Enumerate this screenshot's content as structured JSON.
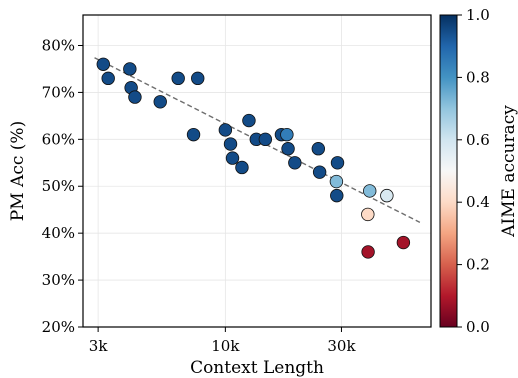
{
  "chart_data": {
    "type": "scatter",
    "xlabel": "Context Length",
    "ylabel": "PM Acc (%)",
    "x_scale": "log",
    "x_ticks": [
      {
        "value": 3000,
        "label": "3k"
      },
      {
        "value": 10000,
        "label": "10k"
      },
      {
        "value": 30000,
        "label": "30k"
      }
    ],
    "xlim": [
      2600,
      70000
    ],
    "y_ticks": [
      {
        "value": 20,
        "label": "20%"
      },
      {
        "value": 30,
        "label": "30%"
      },
      {
        "value": 40,
        "label": "40%"
      },
      {
        "value": 50,
        "label": "50%"
      },
      {
        "value": 60,
        "label": "60%"
      },
      {
        "value": 70,
        "label": "70%"
      },
      {
        "value": 80,
        "label": "80%"
      }
    ],
    "ylim": [
      20,
      86.5
    ],
    "grid": true,
    "points": [
      {
        "x": 3150,
        "y": 76,
        "aime": 0.95
      },
      {
        "x": 3300,
        "y": 73,
        "aime": 0.95
      },
      {
        "x": 4050,
        "y": 75,
        "aime": 0.95
      },
      {
        "x": 4100,
        "y": 71,
        "aime": 0.95
      },
      {
        "x": 4250,
        "y": 69,
        "aime": 0.95
      },
      {
        "x": 5400,
        "y": 68,
        "aime": 0.95
      },
      {
        "x": 6400,
        "y": 73,
        "aime": 0.95
      },
      {
        "x": 7700,
        "y": 73,
        "aime": 0.95
      },
      {
        "x": 7400,
        "y": 61,
        "aime": 0.95
      },
      {
        "x": 10000,
        "y": 62,
        "aime": 0.95
      },
      {
        "x": 10500,
        "y": 59,
        "aime": 0.95
      },
      {
        "x": 10700,
        "y": 56,
        "aime": 0.95
      },
      {
        "x": 11700,
        "y": 54,
        "aime": 0.95
      },
      {
        "x": 12500,
        "y": 64,
        "aime": 0.95
      },
      {
        "x": 13400,
        "y": 60,
        "aime": 0.95
      },
      {
        "x": 14600,
        "y": 60,
        "aime": 0.95
      },
      {
        "x": 17000,
        "y": 61,
        "aime": 0.95
      },
      {
        "x": 17900,
        "y": 61,
        "aime": 0.85
      },
      {
        "x": 18100,
        "y": 58,
        "aime": 0.95
      },
      {
        "x": 19300,
        "y": 55,
        "aime": 0.95
      },
      {
        "x": 24100,
        "y": 58,
        "aime": 0.95
      },
      {
        "x": 24400,
        "y": 53,
        "aime": 0.95
      },
      {
        "x": 28900,
        "y": 55,
        "aime": 0.95
      },
      {
        "x": 28600,
        "y": 51,
        "aime": 0.72
      },
      {
        "x": 28700,
        "y": 48,
        "aime": 0.95
      },
      {
        "x": 39200,
        "y": 49,
        "aime": 0.72
      },
      {
        "x": 46100,
        "y": 48,
        "aime": 0.58
      },
      {
        "x": 38500,
        "y": 44,
        "aime": 0.4
      },
      {
        "x": 38600,
        "y": 36,
        "aime": 0.08
      },
      {
        "x": 53900,
        "y": 38,
        "aime": 0.08
      }
    ],
    "trendline": {
      "style": "dashed",
      "color": "#6e6e6e",
      "x": [
        2900,
        63000
      ],
      "y": [
        77.4,
        42.3
      ]
    },
    "colorbar": {
      "label": "AIME accuracy",
      "colormap": "RdBu",
      "range": [
        0.0,
        1.0
      ],
      "ticks": [
        {
          "value": 0.0,
          "label": "0.0"
        },
        {
          "value": 0.2,
          "label": "0.2"
        },
        {
          "value": 0.4,
          "label": "0.4"
        },
        {
          "value": 0.6,
          "label": "0.6"
        },
        {
          "value": 0.8,
          "label": "0.8"
        },
        {
          "value": 1.0,
          "label": "1.0"
        }
      ]
    }
  }
}
